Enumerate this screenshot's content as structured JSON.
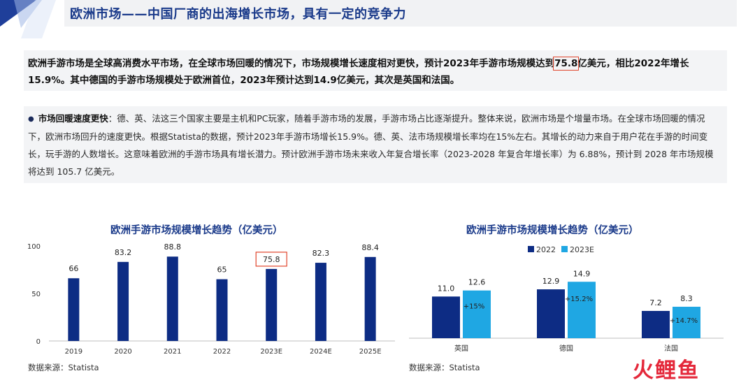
{
  "header": {
    "title": "欧洲市场——中国厂商的出海增长市场，具有一定的竞争力"
  },
  "summary": {
    "text_before": "欧洲手游市场是全球高消费水平市场，在全球市场回暖的情况下，市场规模增长速度相对更快，预计2023年手游市场规模达到",
    "highlight": "75.8",
    "text_after": "亿美元，相比2022年增长15.9%。其中德国的手游市场规模处于欧洲首位，2023年预计达到14.9亿美元，其次是英国和法国。"
  },
  "detail": {
    "lead": "市场回暖速度更快",
    "text": "：德、英、法这三个国家主要是主机和PC玩家，随着手游市场的发展，手游市场占比逐渐提升。整体来说，欧洲市场是个增量市场。在全球市场回暖的情况下，欧洲市场回升的速度更快。根据Statista的数据，预计2023年手游市场增长15.9%。德、英、法市场规模增长率均在15%左右。其增长的动力来自于用户花在手游的时间变长，玩手游的人数增长。这意味着欧洲的手游市场具有增长潜力。预计欧洲手游市场未来收入年复合增长率（2023-2028 年复合年增长率）为 6.88%，预计到 2028 年市场规模将达到 105.7 亿美元。"
  },
  "colors": {
    "dark_blue": "#0d2c84",
    "light_blue": "#1fa7e3",
    "title_blue": "#1a3a8a",
    "highlight_red": "#e0452c"
  },
  "chart_data": [
    {
      "type": "bar",
      "title": "欧洲手游市场规模增长趋势（亿美元）",
      "categories": [
        "2019",
        "2020",
        "2021",
        "2022",
        "2023E",
        "2024E",
        "2025E"
      ],
      "values": [
        66,
        83.2,
        88.8,
        65,
        75.8,
        82.3,
        88.4
      ],
      "value_labels": [
        "66",
        "83.2",
        "88.8",
        "65",
        "75.8",
        "82.3",
        "88.4"
      ],
      "highlighted_category": "2023E",
      "yticks": [
        "0",
        "50",
        "100"
      ],
      "ylim": [
        0,
        100
      ],
      "grid": false,
      "source": "数据来源：Statista"
    },
    {
      "type": "bar",
      "title": "欧洲手游市场规模增长趋势（亿美元）",
      "categories": [
        "英国",
        "德国",
        "法国"
      ],
      "series": [
        {
          "name": "2022",
          "values": [
            11.0,
            12.9,
            7.2
          ],
          "labels": [
            "11.0",
            "12.9",
            "7.2"
          ]
        },
        {
          "name": "2023E",
          "values": [
            12.6,
            14.9,
            8.3
          ],
          "labels": [
            "12.6",
            "14.9",
            "8.3"
          ]
        }
      ],
      "growth_labels": [
        "+15%",
        "+15.2%",
        "+14.7%"
      ],
      "legend": "top",
      "grid": false,
      "source": "数据来源：Statista"
    }
  ],
  "watermark": "火鲤鱼"
}
